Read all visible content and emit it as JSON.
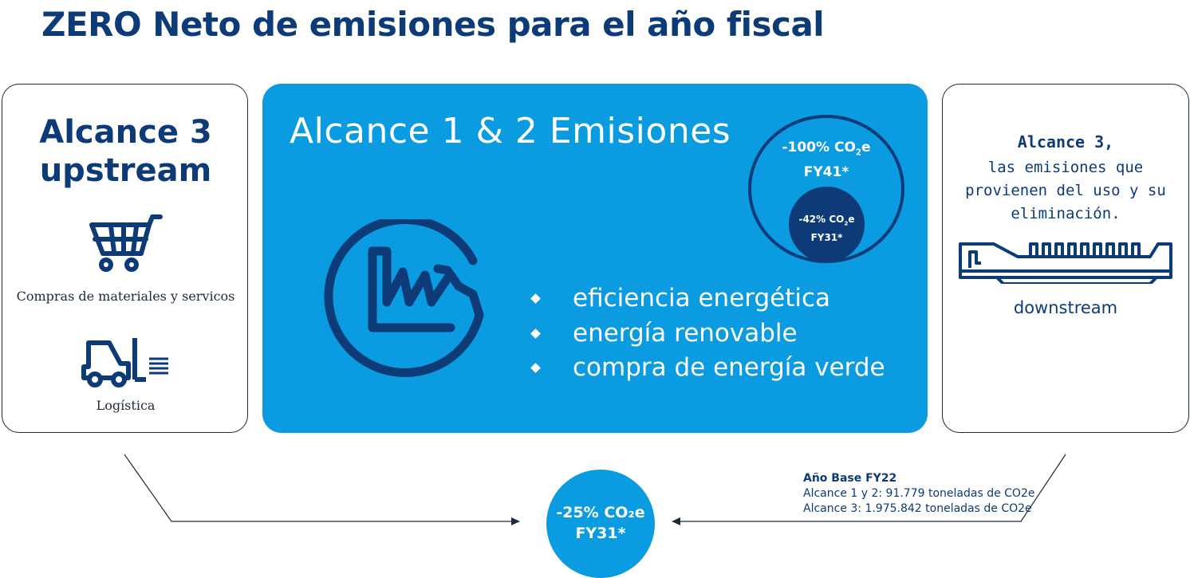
{
  "title": "ZERO Neto de emisiones para el año fiscal",
  "left_panel": {
    "heading_line1": "Alcance 3",
    "heading_line2": "upstream",
    "items": [
      {
        "icon": "shopping-cart-icon",
        "label": "Compras de materiales y servicos"
      },
      {
        "icon": "forklift-icon",
        "label": "Logística"
      }
    ]
  },
  "center_panel": {
    "heading": "Alcance 1 & 2 Emisiones",
    "icon": "factory-icon",
    "bullets": [
      "eficiencia energética",
      "energía renovable",
      "compra de energía verde"
    ],
    "outer_target": {
      "line1_pre": "-100% CO",
      "line1_sub": "2",
      "line1_post": "e",
      "line2": "FY41*"
    },
    "inner_target": {
      "line1_pre": "-42% CO",
      "line1_sub": "2",
      "line1_post": "e",
      "line2": "FY31*"
    }
  },
  "right_panel": {
    "heading": "Alcance 3,",
    "desc_line1": "las emisiones que",
    "desc_line2": "provienen del uso y su",
    "desc_line3": "eliminación.",
    "icon": "appliance-icon",
    "label": "downstream"
  },
  "result": {
    "line1": "-25% CO₂e",
    "line2": "FY31*"
  },
  "base_year": {
    "title": "Año Base FY22",
    "line1": "Alcance 1 y 2: 91.779 toneladas de CO2e",
    "line2": "Alcance 3: 1.975.842 toneladas de CO2e"
  },
  "colors": {
    "navy": "#0d3b78",
    "blue": "#0a9be0",
    "white": "#ffffff"
  }
}
